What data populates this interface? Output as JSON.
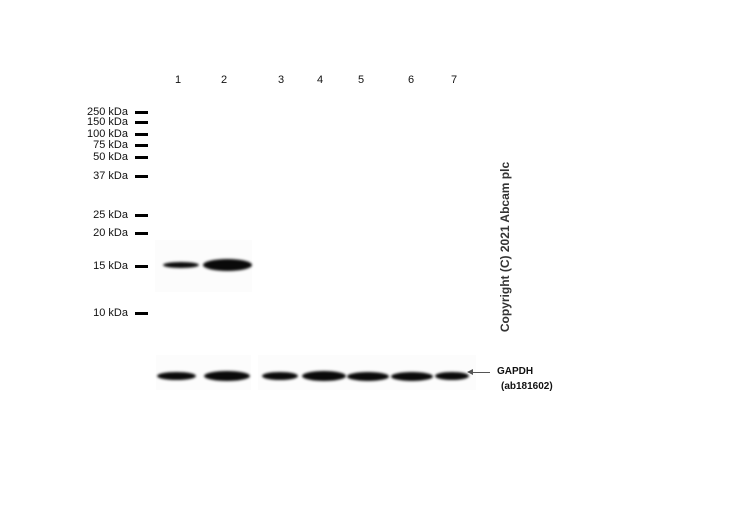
{
  "lanes": [
    "1",
    "2",
    "3",
    "4",
    "5",
    "6",
    "7"
  ],
  "markers": [
    "250 kDa",
    "150 kDa",
    "100 kDa",
    "75 kDa",
    "50 kDa",
    "37 kDa",
    "25 kDa",
    "20 kDa",
    "15 kDa",
    "10 kDa"
  ],
  "target_band": {
    "marker": "15 kDa",
    "lanes_present": [
      "1",
      "2"
    ]
  },
  "loading_control": {
    "name": "GAPDH",
    "antibody": "(ab181602)",
    "lanes_present": [
      "1",
      "2",
      "3",
      "4",
      "5",
      "6",
      "7"
    ]
  },
  "copyright": "Copyright (C) 2021 Abcam plc",
  "colors": {
    "band": "#0a0a0a",
    "background": "#ffffff"
  }
}
